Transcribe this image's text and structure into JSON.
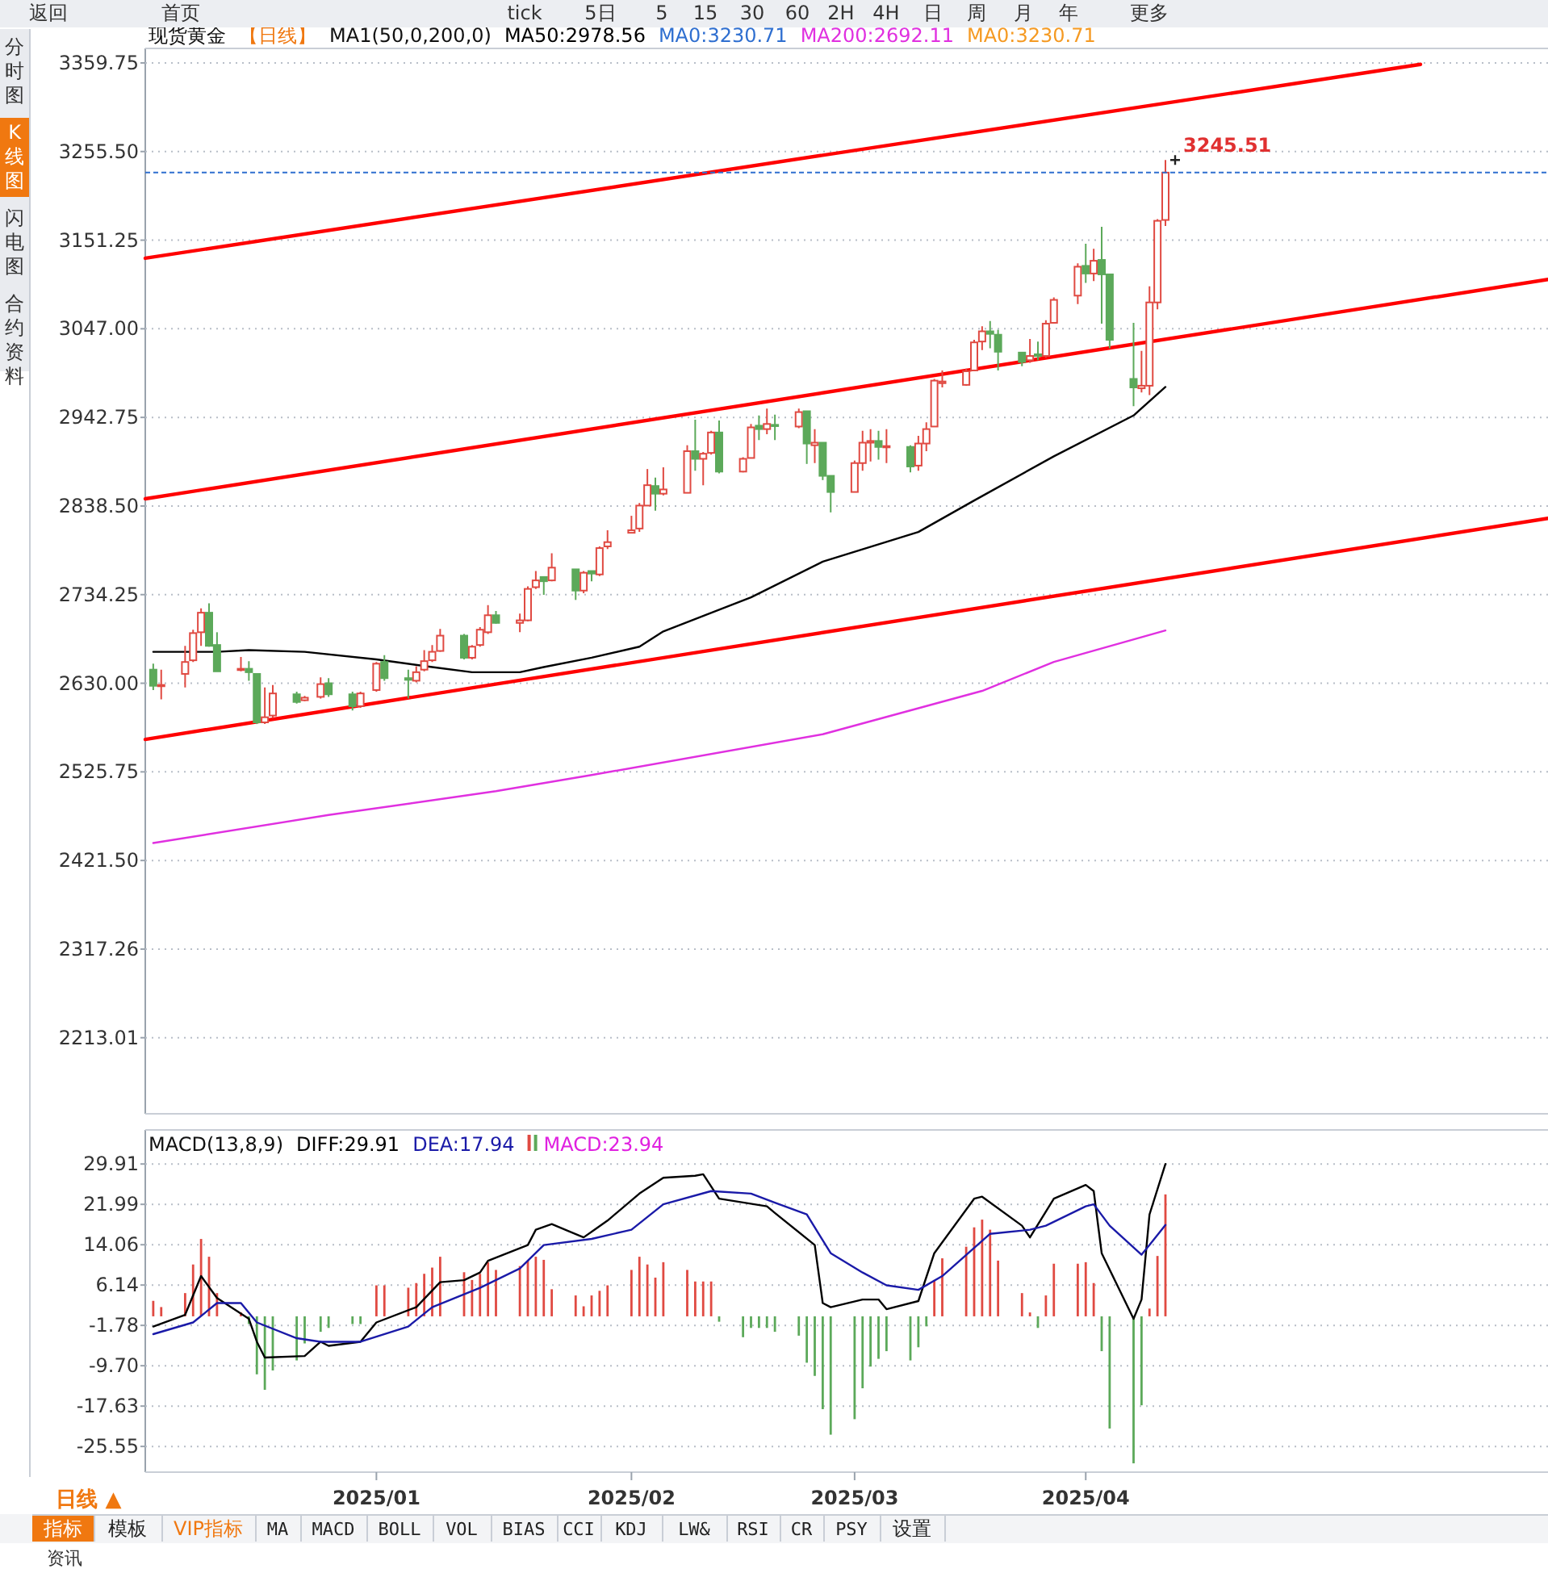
{
  "chart_data": [
    {
      "type": "candlestick",
      "title": "现货黄金",
      "subtitle": "【日线】",
      "legend_title": "MA1(50,0,200,0)",
      "legend": "top left",
      "grid": "y",
      "tick_labels": "y",
      "xlim": [
        "2024-12-04",
        "2025-05-29"
      ],
      "ylim": [
        2123.5,
        3376.8
      ],
      "yticks": [
        3359.75,
        {
          "value": 3255.5,
          "label": "3255.50"
        },
        3151.25,
        {
          "value": 3047,
          "label": "3047.00"
        },
        2942.75,
        {
          "value": 2838.5,
          "label": "2838.50"
        },
        2734.25,
        {
          "value": 2630,
          "label": "2630.00"
        },
        2525.75,
        {
          "value": 2421.5,
          "label": "2421.50"
        },
        2317.26,
        2213.01
      ],
      "x": [
        "2024-12-05",
        "2024-12-06",
        "2024-12-09",
        "2024-12-10",
        "2024-12-11",
        "2024-12-12",
        "2024-12-13",
        "2024-12-16",
        "2024-12-17",
        "2024-12-18",
        "2024-12-19",
        "2024-12-20",
        "2024-12-23",
        "2024-12-24",
        "2024-12-26",
        "2024-12-27",
        "2024-12-30",
        "2024-12-31",
        "2025-01-02",
        "2025-01-03",
        "2025-01-06",
        "2025-01-07",
        "2025-01-08",
        "2025-01-09",
        "2025-01-10",
        "2025-01-13",
        "2025-01-14",
        "2025-01-15",
        "2025-01-16",
        "2025-01-17",
        "2025-01-20",
        "2025-01-21",
        "2025-01-22",
        "2025-01-23",
        "2025-01-24",
        "2025-01-27",
        "2025-01-28",
        "2025-01-29",
        "2025-01-30",
        "2025-01-31",
        "2025-02-03",
        "2025-02-04",
        "2025-02-05",
        "2025-02-06",
        "2025-02-07",
        "2025-02-10",
        "2025-02-11",
        "2025-02-12",
        "2025-02-13",
        "2025-02-14",
        "2025-02-17",
        "2025-02-18",
        "2025-02-19",
        "2025-02-20",
        "2025-02-21",
        "2025-02-24",
        "2025-02-25",
        "2025-02-26",
        "2025-02-27",
        "2025-02-28",
        "2025-03-03",
        "2025-03-04",
        "2025-03-05",
        "2025-03-06",
        "2025-03-07",
        "2025-03-10",
        "2025-03-11",
        "2025-03-12",
        "2025-03-13",
        "2025-03-14",
        "2025-03-17",
        "2025-03-18",
        "2025-03-19",
        "2025-03-20",
        "2025-03-21",
        "2025-03-24",
        "2025-03-25",
        "2025-03-26",
        "2025-03-27",
        "2025-03-28",
        "2025-03-31",
        "2025-04-01",
        "2025-04-02",
        "2025-04-03",
        "2025-04-04",
        "2025-04-07",
        "2025-04-08",
        "2025-04-09",
        "2025-04-10",
        "2025-04-11"
      ],
      "ohlc": [
        [
          2646,
          2653,
          2622,
          2627
        ],
        [
          2627,
          2646,
          2611,
          2628
        ],
        [
          2641,
          2674,
          2625,
          2655
        ],
        [
          2657,
          2693,
          2655,
          2689
        ],
        [
          2690,
          2718,
          2674,
          2713
        ],
        [
          2713,
          2724,
          2673,
          2674
        ],
        [
          2675,
          2690,
          2644,
          2644
        ],
        [
          2646,
          2661,
          2644,
          2647
        ],
        [
          2647,
          2656,
          2633,
          2643
        ],
        [
          2641,
          2641,
          2582,
          2584
        ],
        [
          2584,
          2625,
          2582,
          2590
        ],
        [
          2592,
          2628,
          2589,
          2618
        ],
        [
          2617,
          2620,
          2606,
          2608
        ],
        [
          2610,
          2615,
          2609,
          2613
        ],
        [
          2614,
          2637,
          2612,
          2629
        ],
        [
          2630,
          2636,
          2614,
          2617
        ],
        [
          2617,
          2620,
          2598,
          2603
        ],
        [
          2603,
          2620,
          2601,
          2618
        ],
        [
          2622,
          2655,
          2620,
          2653
        ],
        [
          2655,
          2663,
          2633,
          2636
        ],
        [
          2636,
          2646,
          2612,
          2634
        ],
        [
          2633,
          2650,
          2631,
          2643
        ],
        [
          2646,
          2669,
          2644,
          2656
        ],
        [
          2657,
          2675,
          2655,
          2667
        ],
        [
          2668,
          2694,
          2667,
          2686
        ],
        [
          2686,
          2688,
          2658,
          2660
        ],
        [
          2660,
          2675,
          2658,
          2673
        ],
        [
          2675,
          2696,
          2673,
          2693
        ],
        [
          2690,
          2722,
          2688,
          2710
        ],
        [
          2710,
          2715,
          2700,
          2701
        ],
        [
          2701,
          2712,
          2690,
          2704
        ],
        [
          2704,
          2744,
          2703,
          2741
        ],
        [
          2743,
          2762,
          2741,
          2751
        ],
        [
          2755,
          2755,
          2734,
          2750
        ],
        [
          2751,
          2783,
          2750,
          2766
        ],
        [
          2764,
          2764,
          2728,
          2739
        ],
        [
          2739,
          2762,
          2736,
          2760
        ],
        [
          2762,
          2762,
          2750,
          2759
        ],
        [
          2758,
          2791,
          2756,
          2789
        ],
        [
          2791,
          2810,
          2788,
          2796
        ],
        [
          2807,
          2827,
          2807,
          2810
        ],
        [
          2812,
          2842,
          2808,
          2839
        ],
        [
          2839,
          2882,
          2839,
          2863
        ],
        [
          2862,
          2872,
          2833,
          2853
        ],
        [
          2853,
          2884,
          2851,
          2858
        ],
        [
          2854,
          2910,
          2854,
          2903
        ],
        [
          2903,
          2940,
          2880,
          2894
        ],
        [
          2894,
          2902,
          2863,
          2900
        ],
        [
          2901,
          2927,
          2899,
          2925
        ],
        [
          2925,
          2939,
          2877,
          2879
        ],
        [
          2879,
          2896,
          2878,
          2894
        ],
        [
          2895,
          2935,
          2895,
          2931
        ],
        [
          2933,
          2945,
          2916,
          2929
        ],
        [
          2929,
          2953,
          2923,
          2935
        ],
        [
          2934,
          2946,
          2916,
          2933
        ],
        [
          2932,
          2953,
          2930,
          2949
        ],
        [
          2950,
          2950,
          2888,
          2912
        ],
        [
          2910,
          2929,
          2889,
          2913
        ],
        [
          2913,
          2913,
          2869,
          2874
        ],
        [
          2874,
          2874,
          2831,
          2855
        ],
        [
          2855,
          2892,
          2855,
          2889
        ],
        [
          2889,
          2927,
          2880,
          2913
        ],
        [
          2913,
          2929,
          2891,
          2915
        ],
        [
          2915,
          2927,
          2893,
          2908
        ],
        [
          2908,
          2929,
          2889,
          2909
        ],
        [
          2908,
          2910,
          2878,
          2885
        ],
        [
          2886,
          2921,
          2880,
          2912
        ],
        [
          2912,
          2937,
          2903,
          2929
        ],
        [
          2932,
          2988,
          2932,
          2986
        ],
        [
          2983,
          2998,
          2978,
          2985
        ],
        [
          2981,
          3000,
          2980,
          2997
        ],
        [
          2998,
          3034,
          2997,
          3031
        ],
        [
          3032,
          3050,
          3022,
          3044
        ],
        [
          3044,
          3056,
          3024,
          3041
        ],
        [
          3040,
          3046,
          2998,
          3020
        ],
        [
          3019,
          3019,
          3003,
          3008
        ],
        [
          3010,
          3035,
          3007,
          3015
        ],
        [
          3017,
          3032,
          3010,
          3015
        ],
        [
          3015,
          3057,
          3013,
          3053
        ],
        [
          3054,
          3084,
          3053,
          3081
        ],
        [
          3086,
          3124,
          3076,
          3120
        ],
        [
          3121,
          3147,
          3101,
          3112
        ],
        [
          3112,
          3141,
          3103,
          3127
        ],
        [
          3128,
          3167,
          3053,
          3111
        ],
        [
          3111,
          3111,
          3024,
          3034
        ],
        [
          2988,
          3054,
          2956,
          2978
        ],
        [
          2977,
          3021,
          2972,
          2980
        ],
        [
          2980,
          3097,
          2969,
          3078
        ],
        [
          3078,
          3176,
          3070,
          3174
        ],
        [
          3175,
          3245.51,
          3168,
          3230.71
        ]
      ],
      "series": [
        {
          "type": "line",
          "name": "MA50:2978.56",
          "color": "#000000",
          "x": [
            "2024-12-05",
            "2024-12-13",
            "2024-12-17",
            "2024-12-24",
            "2025-01-02",
            "2025-01-09",
            "2025-01-14",
            "2025-01-20",
            "2025-01-23",
            "2025-01-29",
            "2025-02-04",
            "2025-02-07",
            "2025-02-18",
            "2025-02-27",
            "2025-03-11",
            "2025-03-18",
            "2025-03-28",
            "2025-04-07",
            "2025-04-11"
          ],
          "values": [
            2667,
            2667,
            2669,
            2667,
            2658,
            2649,
            2643,
            2643,
            2649,
            2660,
            2673,
            2691,
            2731,
            2773,
            2808,
            2845,
            2897,
            2945,
            2978.56
          ]
        },
        {
          "type": "line",
          "name": "MA200:2692.11",
          "color": "#e030e0",
          "x": [
            "2024-12-05",
            "2024-12-27",
            "2025-01-17",
            "2025-01-29",
            "2025-02-27",
            "2025-03-19",
            "2025-03-28",
            "2025-04-11"
          ],
          "values": [
            2442,
            2475,
            2503,
            2522,
            2570,
            2621,
            2655,
            2692.11
          ]
        },
        {
          "type": "line",
          "color": "#ff0000",
          "x": [
            "2024-12-04",
            "2025-05-13"
          ],
          "values": [
            3130,
            3358
          ]
        },
        {
          "type": "line",
          "color": "#ff0000",
          "x": [
            "2024-12-04",
            "2025-05-29"
          ],
          "values": [
            2847,
            3105
          ]
        },
        {
          "type": "line",
          "color": "#ff0000",
          "x": [
            "2024-12-04",
            "2025-05-29"
          ],
          "values": [
            2564,
            2824
          ]
        }
      ],
      "ref_lines": [
        {
          "axis": "y",
          "value": 3230.71,
          "label": "MA0:3230.71",
          "color": "#2f6fd0",
          "line_style": "dashed"
        }
      ],
      "annotations": [
        "MA0:3230.71",
        {
          "text": "3245.51",
          "x": "2025-04-11",
          "y": 3245.51
        }
      ]
    },
    {
      "type": "line",
      "title": "MACD(13,8,9)",
      "legend": "top left",
      "grid": "y",
      "xlim": [
        "2024-12-04",
        "2025-05-29"
      ],
      "xticks": [
        {
          "value": "2025-01-02",
          "label": "2025/01"
        },
        {
          "value": "2025-02-03",
          "label": "2025/02"
        },
        {
          "value": "2025-03-03",
          "label": "2025/03"
        },
        {
          "value": "2025-04-01",
          "label": "2025/04"
        }
      ],
      "ylim": [
        -30.6,
        36.6
      ],
      "yticks": [
        29.91,
        21.99,
        14.06,
        6.14,
        -1.78,
        {
          "value": -9.7,
          "label": "-9.70"
        },
        -17.63,
        -25.55
      ],
      "x": [
        "2024-12-05",
        "2024-12-06",
        "2024-12-09",
        "2024-12-10",
        "2024-12-11",
        "2024-12-12",
        "2024-12-13",
        "2024-12-16",
        "2024-12-17",
        "2024-12-18",
        "2024-12-19",
        "2024-12-20",
        "2024-12-23",
        "2024-12-24",
        "2024-12-26",
        "2024-12-27",
        "2024-12-30",
        "2024-12-31",
        "2025-01-02",
        "2025-01-03",
        "2025-01-06",
        "2025-01-07",
        "2025-01-08",
        "2025-01-09",
        "2025-01-10",
        "2025-01-13",
        "2025-01-14",
        "2025-01-15",
        "2025-01-16",
        "2025-01-17",
        "2025-01-20",
        "2025-01-21",
        "2025-01-22",
        "2025-01-23",
        "2025-01-24",
        "2025-01-27",
        "2025-01-28",
        "2025-01-29",
        "2025-01-30",
        "2025-01-31",
        "2025-02-03",
        "2025-02-04",
        "2025-02-05",
        "2025-02-06",
        "2025-02-07",
        "2025-02-10",
        "2025-02-11",
        "2025-02-12",
        "2025-02-13",
        "2025-02-14",
        "2025-02-17",
        "2025-02-18",
        "2025-02-19",
        "2025-02-20",
        "2025-02-21",
        "2025-02-24",
        "2025-02-25",
        "2025-02-26",
        "2025-02-27",
        "2025-02-28",
        "2025-03-03",
        "2025-03-04",
        "2025-03-05",
        "2025-03-06",
        "2025-03-07",
        "2025-03-10",
        "2025-03-11",
        "2025-03-12",
        "2025-03-13",
        "2025-03-14",
        "2025-03-17",
        "2025-03-18",
        "2025-03-19",
        "2025-03-20",
        "2025-03-21",
        "2025-03-24",
        "2025-03-25",
        "2025-03-26",
        "2025-03-27",
        "2025-03-28",
        "2025-03-31",
        "2025-04-01",
        "2025-04-02",
        "2025-04-03",
        "2025-04-04",
        "2025-04-07",
        "2025-04-08",
        "2025-04-09",
        "2025-04-10",
        "2025-04-11"
      ],
      "series": [
        {
          "type": "line",
          "name": "DIFF:29.91",
          "color": "#000000",
          "x": [
            "2024-12-05",
            "2024-12-09",
            "2024-12-11",
            "2024-12-13",
            "2024-12-17",
            "2024-12-18",
            "2024-12-19",
            "2024-12-24",
            "2024-12-26",
            "2024-12-27",
            "2024-12-31",
            "2025-01-02",
            "2025-01-07",
            "2025-01-10",
            "2025-01-13",
            "2025-01-15",
            "2025-01-16",
            "2025-01-21",
            "2025-01-22",
            "2025-01-24",
            "2025-01-28",
            "2025-01-31",
            "2025-02-04",
            "2025-02-07",
            "2025-02-11",
            "2025-02-12",
            "2025-02-14",
            "2025-02-20",
            "2025-02-21",
            "2025-02-26",
            "2025-02-27",
            "2025-02-28",
            "2025-03-04",
            "2025-03-06",
            "2025-03-07",
            "2025-03-11",
            "2025-03-13",
            "2025-03-18",
            "2025-03-19",
            "2025-03-24",
            "2025-03-25",
            "2025-03-28",
            "2025-04-01",
            "2025-04-02",
            "2025-04-03",
            "2025-04-07",
            "2025-04-08",
            "2025-04-09",
            "2025-04-11"
          ],
          "values": [
            -2.0,
            0.3,
            7.9,
            3.6,
            -0.5,
            -5.0,
            -8.1,
            -7.8,
            -5.0,
            -5.8,
            -5.0,
            -1.2,
            1.8,
            6.7,
            7.1,
            8.6,
            10.9,
            14.0,
            17.0,
            18.1,
            15.5,
            18.8,
            24.1,
            27.2,
            27.6,
            27.9,
            23.1,
            21.6,
            20.3,
            14.0,
            2.6,
            1.8,
            3.3,
            3.3,
            1.4,
            3.0,
            12.4,
            23.1,
            23.5,
            17.8,
            15.5,
            23.1,
            25.8,
            24.6,
            12.4,
            -0.5,
            3.3,
            20.0,
            29.91
          ]
        },
        {
          "type": "line",
          "name": "DEA:17.94",
          "color": "#1a1aa8",
          "x": [
            "2024-12-05",
            "2024-12-10",
            "2024-12-13",
            "2024-12-16",
            "2024-12-18",
            "2024-12-23",
            "2024-12-26",
            "2024-12-31",
            "2025-01-06",
            "2025-01-09",
            "2025-01-15",
            "2025-01-20",
            "2025-01-23",
            "2025-01-29",
            "2025-02-03",
            "2025-02-07",
            "2025-02-13",
            "2025-02-18",
            "2025-02-21",
            "2025-02-25",
            "2025-02-28",
            "2025-03-04",
            "2025-03-07",
            "2025-03-11",
            "2025-03-14",
            "2025-03-20",
            "2025-03-25",
            "2025-03-27",
            "2025-04-01",
            "2025-04-02",
            "2025-04-04",
            "2025-04-08",
            "2025-04-09",
            "2025-04-11"
          ],
          "values": [
            -3.5,
            -1.2,
            2.6,
            2.6,
            -1.2,
            -4.3,
            -5.0,
            -5.0,
            -2.0,
            1.8,
            5.6,
            9.4,
            14.0,
            15.2,
            17.0,
            22.0,
            24.6,
            24.1,
            22.3,
            20.0,
            12.4,
            8.6,
            6.1,
            5.2,
            7.9,
            16.2,
            17.0,
            17.8,
            21.6,
            22.0,
            17.8,
            12.1,
            14.0,
            17.94
          ]
        },
        {
          "type": "bar",
          "name": "MACD:23.94",
          "values": [
            3.04,
            1.82,
            4.56,
            10.18,
            15.19,
            11.7,
            4.56,
            0.76,
            -1.52,
            -11.39,
            -14.43,
            -10.63,
            -8.66,
            -5.32,
            -3.04,
            -2.28,
            -1.52,
            -1.52,
            6.08,
            6.08,
            5.62,
            6.53,
            8.35,
            9.57,
            11.7,
            8.66,
            7.14,
            8.35,
            10.63,
            9.11,
            9.87,
            10.94,
            11.7,
            11.09,
            5.32,
            4.1,
            1.97,
            4.1,
            5.01,
            6.08,
            9.11,
            11.7,
            10.18,
            7.6,
            10.63,
            9.11,
            6.84,
            6.84,
            6.84,
            -1.06,
            -4.1,
            -2.28,
            -2.28,
            -2.28,
            -3.04,
            -3.8,
            -9.11,
            -11.7,
            -18.23,
            -23.24,
            -20.2,
            -14.13,
            -9.87,
            -8.35,
            -6.84,
            -8.66,
            -6.08,
            -1.97,
            7.14,
            11.39,
            13.67,
            17.47,
            18.99,
            17.01,
            10.94,
            4.56,
            0.76,
            -2.28,
            4.1,
            10.33,
            10.33,
            10.63,
            6.53,
            -6.84,
            -22.03,
            -28.87,
            -17.47,
            1.52,
            11.85,
            23.94
          ],
          "colors": [
            "#e04a42",
            "#e04a42",
            "#e04a42",
            "#e04a42",
            "#e04a42",
            "#e04a42",
            "#e04a42",
            "#e04a42",
            "#5ca95a",
            "#5ca95a",
            "#5ca95a",
            "#5ca95a",
            "#5ca95a",
            "#5ca95a",
            "#5ca95a",
            "#5ca95a",
            "#5ca95a",
            "#5ca95a",
            "#e04a42",
            "#e04a42",
            "#e04a42",
            "#e04a42",
            "#e04a42",
            "#e04a42",
            "#e04a42",
            "#e04a42",
            "#e04a42",
            "#e04a42",
            "#e04a42",
            "#e04a42",
            "#e04a42",
            "#e04a42",
            "#e04a42",
            "#e04a42",
            "#e04a42",
            "#e04a42",
            "#e04a42",
            "#e04a42",
            "#e04a42",
            "#e04a42",
            "#e04a42",
            "#e04a42",
            "#e04a42",
            "#e04a42",
            "#e04a42",
            "#e04a42",
            "#e04a42",
            "#e04a42",
            "#e04a42",
            "#5ca95a",
            "#5ca95a",
            "#5ca95a",
            "#5ca95a",
            "#5ca95a",
            "#5ca95a",
            "#5ca95a",
            "#5ca95a",
            "#5ca95a",
            "#5ca95a",
            "#5ca95a",
            "#5ca95a",
            "#5ca95a",
            "#5ca95a",
            "#5ca95a",
            "#5ca95a",
            "#5ca95a",
            "#5ca95a",
            "#5ca95a",
            "#e04a42",
            "#e04a42",
            "#e04a42",
            "#e04a42",
            "#e04a42",
            "#e04a42",
            "#e04a42",
            "#e04a42",
            "#e04a42",
            "#5ca95a",
            "#e04a42",
            "#e04a42",
            "#e04a42",
            "#e04a42",
            "#e04a42",
            "#5ca95a",
            "#5ca95a",
            "#5ca95a",
            "#5ca95a",
            "#e04a42",
            "#e04a42",
            "#e04a42"
          ]
        }
      ]
    },
    {
      "type": "other",
      "annotations": [
        "返回",
        "首页",
        "tick",
        "5日",
        "5",
        "15",
        "30",
        "60",
        "2H",
        "4H",
        "日",
        "周",
        "月",
        "年",
        "更多"
      ]
    },
    {
      "type": "other",
      "annotations": [
        "分时图",
        "K线图",
        "闪电图",
        "合约资料"
      ]
    },
    {
      "type": "other",
      "annotations": [
        "日线 ▲",
        "指标",
        "模板",
        "VIP指标",
        "MA",
        "MACD",
        "BOLL",
        "VOL",
        "BIAS",
        "CCI",
        "KDJ",
        "LW&",
        "RSI",
        "CR",
        "PSY",
        "设置",
        "资讯"
      ]
    }
  ]
}
